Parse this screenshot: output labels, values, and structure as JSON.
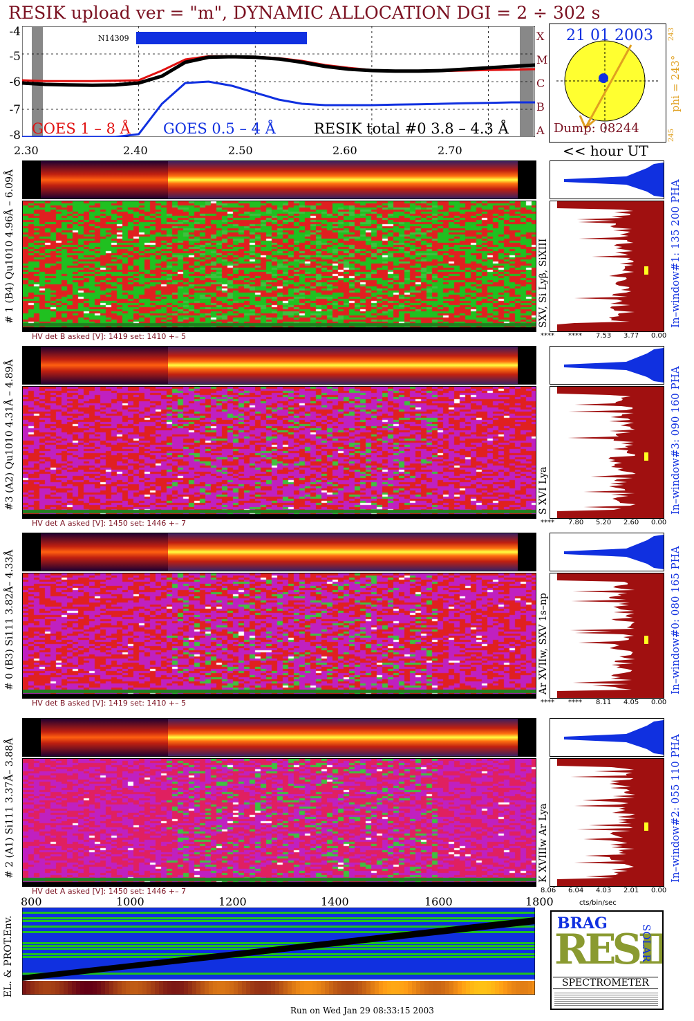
{
  "title": "RESIK upload ver = \"m\", DYNAMIC ALLOCATION  DGI =   2 ÷ 302 s",
  "goes": {
    "yticks": [
      "-4",
      "-5",
      "-6",
      "-7",
      "-8"
    ],
    "xticks": [
      "2.30",
      "2.40",
      "2.50",
      "2.60",
      "2.70"
    ],
    "class_letters": [
      "X",
      "M",
      "C",
      "B",
      "A"
    ],
    "noaa_label": "N14309",
    "legend_goes18": "GOES 1 – 8 Å",
    "legend_goes054": "GOES 0.5 – 4 Å",
    "legend_resik": "RESIK total #0  3.8 – 4.3 Å",
    "hour_label": "<< hour UT"
  },
  "sun": {
    "date": "21 01 2003",
    "dump": "Dump: 08244",
    "phi": "phi = 243°",
    "phi_small_top": "243",
    "phi_small_bottom": "245"
  },
  "channels": [
    {
      "left_label": "# 1 (B4) Qu1010 4.96Å – 6.09Å",
      "line_label": "SXV, Si Lyβ, SiXIII",
      "hv": "HV det B asked [V]:  1419 set:  1410 +–    5",
      "pha_label": "In–window#1:  135 200 PHA",
      "pha_ticks": [
        "****",
        "****",
        "7.53",
        "3.77",
        "0.00"
      ]
    },
    {
      "left_label": "#3 (A2) Qu1010  4.31Å – 4.89Å",
      "line_label": "S XVI Lya",
      "hv": "HV det A asked [V]:  1450 set:  1446 +–    7",
      "pha_label": "In–window#3:  090 160 PHA",
      "pha_ticks": [
        "****",
        "7.80",
        "5.20",
        "2.60",
        "0.00"
      ]
    },
    {
      "left_label": "# 0 (B3) Si111  3.82Å– 4.33Å",
      "line_label": "Ar XVIIw,  SXV 1s–np",
      "hv": "HV det B asked [V]:  1419 set:  1410 +–    5",
      "pha_label": "In–window#0:  080 165 PHA",
      "pha_ticks": [
        "****",
        "****",
        "8.11",
        "4.05",
        "0.00"
      ]
    },
    {
      "left_label": "# 2 (A1) Si111  3.37Å– 3.88Å",
      "line_label": "K XVIIIw  Ar Lya",
      "hv": "HV det A asked [V]:  1450 set:  1446 +–    7",
      "pha_label": "In–window#2:  055 110 PHA",
      "pha_ticks": [
        "8.06",
        "6.04",
        "4.03",
        "2.01",
        "0.00"
      ]
    }
  ],
  "pha_unit": "cts/bin/sec",
  "env": {
    "label": "EL. & PROT.Env.",
    "xticks": [
      "800",
      "1000",
      "1200",
      "1400",
      "1600",
      "1800"
    ]
  },
  "logo": {
    "text_top": "BRAG",
    "main": "RESIK",
    "side": "SOLAR",
    "bottom": "SPECTROMETER"
  },
  "footer": "Run on Wed Jan 29 08:33:15 2003",
  "colors": {
    "title": "#7a1020",
    "goes_red": "#e01010",
    "goes_blue": "#1030e0",
    "resik": "#000000",
    "hv": "#7a1020",
    "pha_fill": "#a01010",
    "pha_blue": "#1030e0",
    "sun_yellow": "#ffff30",
    "orange": "#e0a020"
  },
  "chart_data": {
    "type": "line",
    "title": "RESIK upload ver = \"m\", DYNAMIC ALLOCATION  DGI =   2 ÷ 302 s",
    "xlabel": "<< hour UT",
    "ylabel": "",
    "xlim": [
      2.3,
      2.74
    ],
    "ylim": [
      -8,
      -4
    ],
    "x": [
      2.3,
      2.32,
      2.34,
      2.36,
      2.38,
      2.4,
      2.42,
      2.44,
      2.46,
      2.48,
      2.5,
      2.52,
      2.54,
      2.56,
      2.58,
      2.6,
      2.62,
      2.64,
      2.66,
      2.68,
      2.7,
      2.72,
      2.74
    ],
    "series": [
      {
        "name": "GOES 1 – 8 Å",
        "values": [
          -5.95,
          -5.98,
          -5.98,
          -5.98,
          -5.97,
          -5.95,
          -5.6,
          -5.2,
          -5.08,
          -5.08,
          -5.1,
          -5.15,
          -5.25,
          -5.4,
          -5.5,
          -5.58,
          -5.63,
          -5.63,
          -5.62,
          -5.6,
          -5.58,
          -5.57,
          -5.55
        ]
      },
      {
        "name": "GOES 0.5 – 4 Å",
        "values": [
          -8.0,
          -8.0,
          -8.0,
          -8.0,
          -8.0,
          -7.9,
          -6.8,
          -6.05,
          -6.0,
          -6.15,
          -6.4,
          -6.65,
          -6.8,
          -6.85,
          -6.85,
          -6.85,
          -6.83,
          -6.82,
          -6.8,
          -6.78,
          -6.77,
          -6.75,
          -6.75
        ]
      },
      {
        "name": "RESIK total #0  3.8 – 4.3 Å",
        "values": [
          -6.05,
          -6.1,
          -6.12,
          -6.13,
          -6.12,
          -6.05,
          -5.8,
          -5.3,
          -5.12,
          -5.1,
          -5.12,
          -5.18,
          -5.3,
          -5.45,
          -5.55,
          -5.6,
          -5.62,
          -5.62,
          -5.6,
          -5.55,
          -5.5,
          -5.45,
          -5.4
        ]
      }
    ]
  }
}
